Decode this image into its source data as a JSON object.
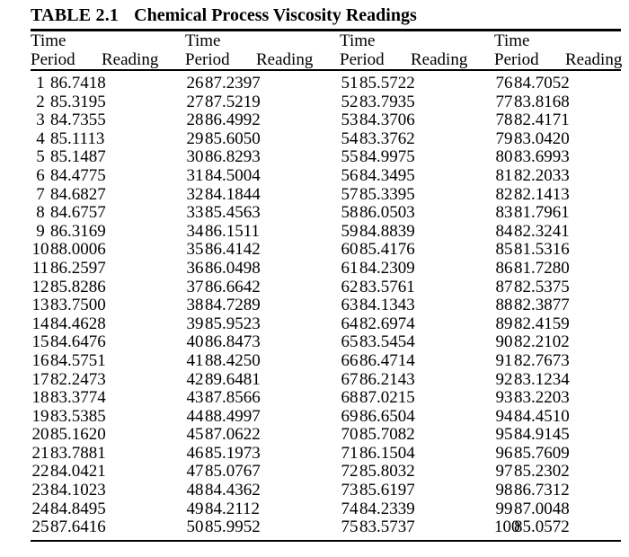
{
  "page": {
    "title_label": "TABLE 2.1",
    "title_text": "Chemical Process Viscosity Readings"
  },
  "table": {
    "group_count": 4,
    "headers": {
      "period_line1": "Time",
      "period_line2": "Period",
      "reading": "Reading"
    },
    "rows": [
      [
        "1",
        "86.7418",
        "26",
        "87.2397",
        "51",
        "85.5722",
        "76",
        "84.7052"
      ],
      [
        "2",
        "85.3195",
        "27",
        "87.5219",
        "52",
        "83.7935",
        "77",
        "83.8168"
      ],
      [
        "3",
        "84.7355",
        "28",
        "86.4992",
        "53",
        "84.3706",
        "78",
        "82.4171"
      ],
      [
        "4",
        "85.1113",
        "29",
        "85.6050",
        "54",
        "83.3762",
        "79",
        "83.0420"
      ],
      [
        "5",
        "85.1487",
        "30",
        "86.8293",
        "55",
        "84.9975",
        "80",
        "83.6993"
      ],
      [
        "6",
        "84.4775",
        "31",
        "84.5004",
        "56",
        "84.3495",
        "81",
        "82.2033"
      ],
      [
        "7",
        "84.6827",
        "32",
        "84.1844",
        "57",
        "85.3395",
        "82",
        "82.1413"
      ],
      [
        "8",
        "84.6757",
        "33",
        "85.4563",
        "58",
        "86.0503",
        "83",
        "81.7961"
      ],
      [
        "9",
        "86.3169",
        "34",
        "86.1511",
        "59",
        "84.8839",
        "84",
        "82.3241"
      ],
      [
        "10",
        "88.0006",
        "35",
        "86.4142",
        "60",
        "85.4176",
        "85",
        "81.5316"
      ],
      [
        "11",
        "86.2597",
        "36",
        "86.0498",
        "61",
        "84.2309",
        "86",
        "81.7280"
      ],
      [
        "12",
        "85.8286",
        "37",
        "86.6642",
        "62",
        "83.5761",
        "87",
        "82.5375"
      ],
      [
        "13",
        "83.7500",
        "38",
        "84.7289",
        "63",
        "84.1343",
        "88",
        "82.3877"
      ],
      [
        "14",
        "84.4628",
        "39",
        "85.9523",
        "64",
        "82.6974",
        "89",
        "82.4159"
      ],
      [
        "15",
        "84.6476",
        "40",
        "86.8473",
        "65",
        "83.5454",
        "90",
        "82.2102"
      ],
      [
        "16",
        "84.5751",
        "41",
        "88.4250",
        "66",
        "86.4714",
        "91",
        "82.7673"
      ],
      [
        "17",
        "82.2473",
        "42",
        "89.6481",
        "67",
        "86.2143",
        "92",
        "83.1234"
      ],
      [
        "18",
        "83.3774",
        "43",
        "87.8566",
        "68",
        "87.0215",
        "93",
        "83.2203"
      ],
      [
        "19",
        "83.5385",
        "44",
        "88.4997",
        "69",
        "86.6504",
        "94",
        "84.4510"
      ],
      [
        "20",
        "85.1620",
        "45",
        "87.0622",
        "70",
        "85.7082",
        "95",
        "84.9145"
      ],
      [
        "21",
        "83.7881",
        "46",
        "85.1973",
        "71",
        "86.1504",
        "96",
        "85.7609"
      ],
      [
        "22",
        "84.0421",
        "47",
        "85.0767",
        "72",
        "85.8032",
        "97",
        "85.2302"
      ],
      [
        "23",
        "84.1023",
        "48",
        "84.4362",
        "73",
        "85.6197",
        "98",
        "86.7312"
      ],
      [
        "24",
        "84.8495",
        "49",
        "84.2112",
        "74",
        "84.2339",
        "99",
        "87.0048"
      ],
      [
        "25",
        "87.6416",
        "50",
        "85.9952",
        "75",
        "83.5737",
        "100",
        "85.0572"
      ]
    ]
  }
}
